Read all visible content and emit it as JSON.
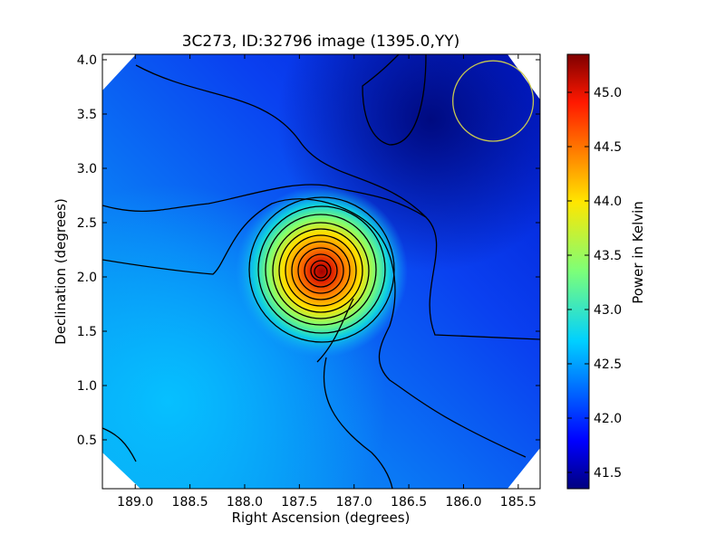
{
  "chart_data": {
    "type": "heatmap",
    "title": "3C273, ID:32796 image (1395.0,YY)",
    "xlabel": "Right Ascension (degrees)",
    "ylabel": "Declination (degrees)",
    "colorbar_label": "Power in Kelvin",
    "colormap": "jet",
    "x_reversed": true,
    "xlim": [
      189.3,
      185.3
    ],
    "ylim": [
      0.05,
      4.05
    ],
    "x_ticks": [
      "189.0",
      "188.5",
      "188.0",
      "187.5",
      "187.0",
      "186.5",
      "186.0",
      "185.5"
    ],
    "x_tick_values": [
      189.0,
      188.5,
      188.0,
      187.5,
      187.0,
      186.5,
      186.0,
      185.5
    ],
    "y_ticks": [
      "0.5",
      "1.0",
      "1.5",
      "2.0",
      "2.5",
      "3.0",
      "3.5",
      "4.0"
    ],
    "y_tick_values": [
      0.5,
      1.0,
      1.5,
      2.0,
      2.5,
      3.0,
      3.5,
      4.0
    ],
    "colorbar_range": [
      41.35,
      45.35
    ],
    "colorbar_ticks": [
      "41.5",
      "42.0",
      "42.5",
      "43.0",
      "43.5",
      "44.0",
      "44.5",
      "45.0"
    ],
    "colorbar_tick_values": [
      41.5,
      42.0,
      42.5,
      43.0,
      43.5,
      44.0,
      44.5,
      45.0
    ],
    "peak": {
      "ra": 187.27,
      "dec": 2.04,
      "value": 45.3
    },
    "beam_circle": {
      "ra": 185.73,
      "dec": 3.62,
      "radius_deg": 0.37,
      "color": "#c8c850"
    },
    "contour_color": "#000000"
  }
}
